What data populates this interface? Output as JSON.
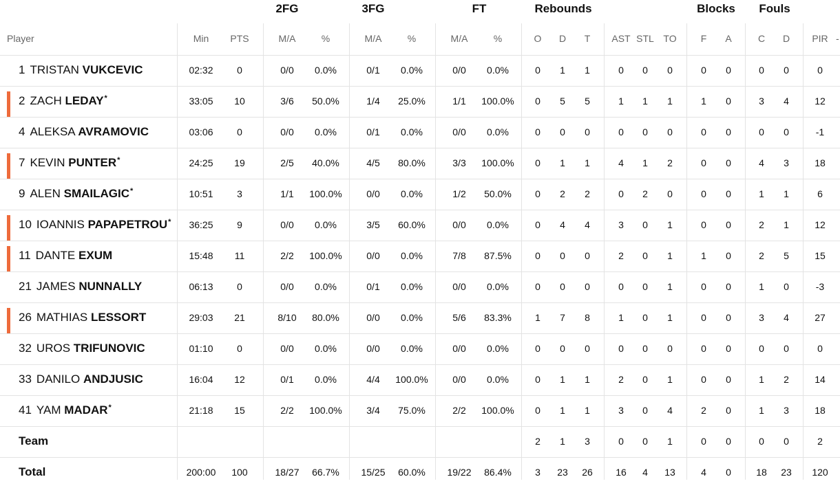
{
  "groups": [
    "2FG",
    "3FG",
    "FT",
    "Rebounds",
    "Blocks",
    "Fouls"
  ],
  "columns": {
    "player": "Player",
    "min": "Min",
    "pts": "PTS",
    "fg2_ma": "M/A",
    "fg2_pct": "%",
    "fg3_ma": "M/A",
    "fg3_pct": "%",
    "ft_ma": "M/A",
    "ft_pct": "%",
    "reb_o": "O",
    "reb_d": "D",
    "reb_t": "T",
    "ast": "AST",
    "stl": "STL",
    "to": "TO",
    "blk_f": "F",
    "blk_a": "A",
    "foul_c": "C",
    "foul_d": "D",
    "pir": "PIR"
  },
  "trailing_mark": "-",
  "players": [
    {
      "num": "1",
      "first": "TRISTAN",
      "last": "VUKCEVIC",
      "starter": false,
      "star": "",
      "stats": [
        "02:32",
        "0",
        "0/0",
        "0.0%",
        "0/1",
        "0.0%",
        "0/0",
        "0.0%",
        "0",
        "1",
        "1",
        "0",
        "0",
        "0",
        "0",
        "0",
        "0",
        "0",
        "0"
      ]
    },
    {
      "num": "2",
      "first": "ZACH",
      "last": "LEDAY",
      "starter": true,
      "star": "*",
      "stats": [
        "33:05",
        "10",
        "3/6",
        "50.0%",
        "1/4",
        "25.0%",
        "1/1",
        "100.0%",
        "0",
        "5",
        "5",
        "1",
        "1",
        "1",
        "1",
        "0",
        "3",
        "4",
        "12"
      ]
    },
    {
      "num": "4",
      "first": "ALEKSA",
      "last": "AVRAMOVIC",
      "starter": false,
      "star": "",
      "stats": [
        "03:06",
        "0",
        "0/0",
        "0.0%",
        "0/1",
        "0.0%",
        "0/0",
        "0.0%",
        "0",
        "0",
        "0",
        "0",
        "0",
        "0",
        "0",
        "0",
        "0",
        "0",
        "-1"
      ]
    },
    {
      "num": "7",
      "first": "KEVIN",
      "last": "PUNTER",
      "starter": true,
      "star": "*",
      "stats": [
        "24:25",
        "19",
        "2/5",
        "40.0%",
        "4/5",
        "80.0%",
        "3/3",
        "100.0%",
        "0",
        "1",
        "1",
        "4",
        "1",
        "2",
        "0",
        "0",
        "4",
        "3",
        "18"
      ]
    },
    {
      "num": "9",
      "first": "ALEN",
      "last": "SMAILAGIC",
      "starter": false,
      "star": "*",
      "stats": [
        "10:51",
        "3",
        "1/1",
        "100.0%",
        "0/0",
        "0.0%",
        "1/2",
        "50.0%",
        "0",
        "2",
        "2",
        "0",
        "2",
        "0",
        "0",
        "0",
        "1",
        "1",
        "6"
      ]
    },
    {
      "num": "10",
      "first": "IOANNIS",
      "last": "PAPAPETROU",
      "starter": true,
      "star": "*",
      "stats": [
        "36:25",
        "9",
        "0/0",
        "0.0%",
        "3/5",
        "60.0%",
        "0/0",
        "0.0%",
        "0",
        "4",
        "4",
        "3",
        "0",
        "1",
        "0",
        "0",
        "2",
        "1",
        "12"
      ]
    },
    {
      "num": "11",
      "first": "DANTE",
      "last": "EXUM",
      "starter": true,
      "star": "",
      "stats": [
        "15:48",
        "11",
        "2/2",
        "100.0%",
        "0/0",
        "0.0%",
        "7/8",
        "87.5%",
        "0",
        "0",
        "0",
        "2",
        "0",
        "1",
        "1",
        "0",
        "2",
        "5",
        "15"
      ]
    },
    {
      "num": "21",
      "first": "JAMES",
      "last": "NUNNALLY",
      "starter": false,
      "star": "",
      "stats": [
        "06:13",
        "0",
        "0/0",
        "0.0%",
        "0/1",
        "0.0%",
        "0/0",
        "0.0%",
        "0",
        "0",
        "0",
        "0",
        "0",
        "1",
        "0",
        "0",
        "1",
        "0",
        "-3"
      ]
    },
    {
      "num": "26",
      "first": "MATHIAS",
      "last": "LESSORT",
      "starter": true,
      "star": "",
      "stats": [
        "29:03",
        "21",
        "8/10",
        "80.0%",
        "0/0",
        "0.0%",
        "5/6",
        "83.3%",
        "1",
        "7",
        "8",
        "1",
        "0",
        "1",
        "0",
        "0",
        "3",
        "4",
        "27"
      ]
    },
    {
      "num": "32",
      "first": "UROS",
      "last": "TRIFUNOVIC",
      "starter": false,
      "star": "",
      "stats": [
        "01:10",
        "0",
        "0/0",
        "0.0%",
        "0/0",
        "0.0%",
        "0/0",
        "0.0%",
        "0",
        "0",
        "0",
        "0",
        "0",
        "0",
        "0",
        "0",
        "0",
        "0",
        "0"
      ]
    },
    {
      "num": "33",
      "first": "DANILO",
      "last": "ANDJUSIC",
      "starter": false,
      "star": "",
      "stats": [
        "16:04",
        "12",
        "0/1",
        "0.0%",
        "4/4",
        "100.0%",
        "0/0",
        "0.0%",
        "0",
        "1",
        "1",
        "2",
        "0",
        "1",
        "0",
        "0",
        "1",
        "2",
        "14"
      ]
    },
    {
      "num": "41",
      "first": "YAM",
      "last": "MADAR",
      "starter": false,
      "star": "*",
      "stats": [
        "21:18",
        "15",
        "2/2",
        "100.0%",
        "3/4",
        "75.0%",
        "2/2",
        "100.0%",
        "0",
        "1",
        "1",
        "3",
        "0",
        "4",
        "2",
        "0",
        "1",
        "3",
        "18"
      ]
    }
  ],
  "team": {
    "label": "Team",
    "stats": [
      "",
      "",
      "",
      "",
      "",
      "",
      "",
      "",
      "2",
      "1",
      "3",
      "0",
      "0",
      "1",
      "0",
      "0",
      "0",
      "0",
      "2"
    ]
  },
  "total": {
    "label": "Total",
    "stats": [
      "200:00",
      "100",
      "18/27",
      "66.7%",
      "15/25",
      "60.0%",
      "19/22",
      "86.4%",
      "3",
      "23",
      "26",
      "16",
      "4",
      "13",
      "4",
      "0",
      "18",
      "23",
      "120"
    ]
  },
  "colors": {
    "starter_marker": "#ee6b3b",
    "header_text": "#666666",
    "row_line": "#e3e3e3"
  }
}
